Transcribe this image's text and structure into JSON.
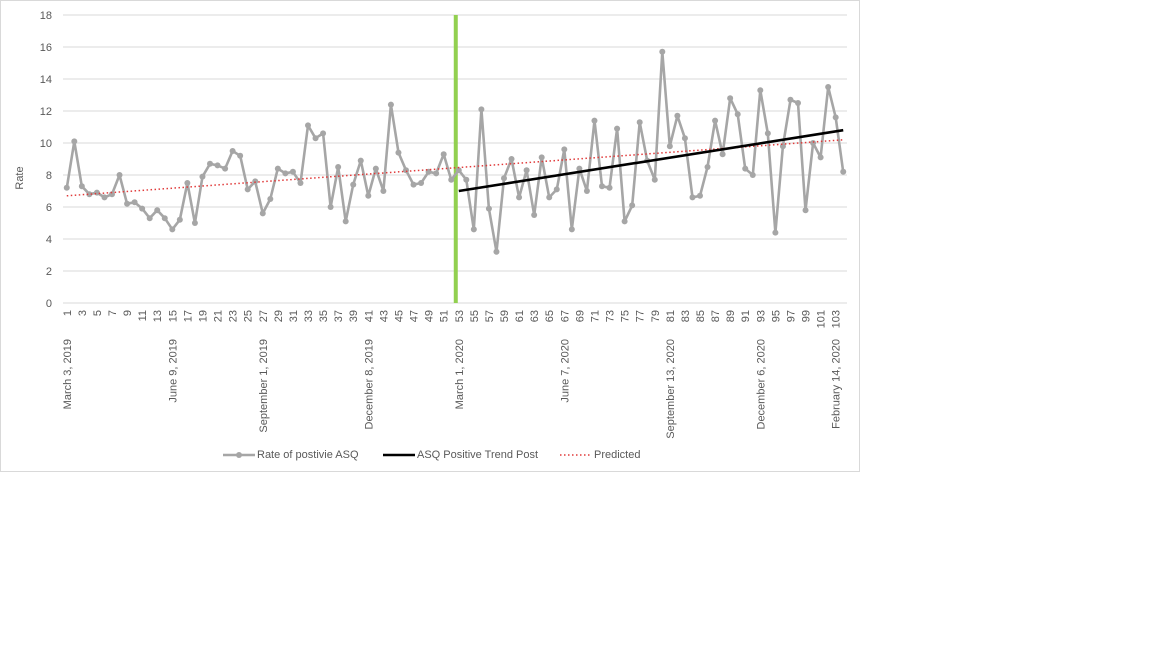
{
  "chart_data": {
    "type": "line",
    "ylabel": "Rate",
    "xlabel": "",
    "ylim": [
      0,
      18
    ],
    "yticks": [
      0,
      2,
      4,
      6,
      8,
      10,
      12,
      14,
      16,
      18
    ],
    "x_tick_labels": [
      "1",
      "3",
      "5",
      "7",
      "9",
      "11",
      "13",
      "15",
      "17",
      "19",
      "21",
      "23",
      "25",
      "27",
      "29",
      "31",
      "33",
      "35",
      "37",
      "39",
      "41",
      "43",
      "45",
      "47",
      "49",
      "51",
      "53",
      "55",
      "57",
      "59",
      "61",
      "63",
      "65",
      "67",
      "69",
      "71",
      "73",
      "75",
      "77",
      "79",
      "81",
      "83",
      "85",
      "87",
      "89",
      "91",
      "93",
      "95",
      "97",
      "99",
      "101",
      "103"
    ],
    "date_labels": [
      {
        "x": 1,
        "label": "March 3, 2019"
      },
      {
        "x": 15,
        "label": "June 9, 2019"
      },
      {
        "x": 27,
        "label": "September 1, 2019"
      },
      {
        "x": 41,
        "label": "December 8, 2019"
      },
      {
        "x": 53,
        "label": "March 1, 2020"
      },
      {
        "x": 67,
        "label": "June 7, 2020"
      },
      {
        "x": 81,
        "label": "September 13, 2020"
      },
      {
        "x": 93,
        "label": "December 6, 2020"
      },
      {
        "x": 103,
        "label": "February 14, 2020"
      }
    ],
    "intervention_x": 53,
    "grid": true,
    "legend_position": "bottom",
    "series": [
      {
        "name": "Rate of postivie ASQ",
        "color": "#a6a6a6",
        "style": "line-marker",
        "x_start": 1,
        "values": [
          7.2,
          10.1,
          7.3,
          6.8,
          6.9,
          6.6,
          6.8,
          8.0,
          6.2,
          6.3,
          5.9,
          5.3,
          5.8,
          5.3,
          4.6,
          5.2,
          7.5,
          5.0,
          7.9,
          8.7,
          8.6,
          8.4,
          9.5,
          9.2,
          7.1,
          7.6,
          5.6,
          6.5,
          8.4,
          8.1,
          8.2,
          7.5,
          11.1,
          10.3,
          10.6,
          6.0,
          8.5,
          5.1,
          7.4,
          8.9,
          6.7,
          8.4,
          7.0,
          12.4,
          9.4,
          8.3,
          7.4,
          7.5,
          8.2,
          8.1,
          9.3,
          7.7,
          8.3,
          7.7,
          4.6,
          12.1,
          5.9,
          3.2,
          7.8,
          9.0,
          6.6,
          8.3,
          5.5,
          9.1,
          6.6,
          7.1,
          9.6,
          4.6,
          8.4,
          7.0,
          11.4,
          7.3,
          7.2,
          10.9,
          5.1,
          6.1,
          11.3,
          8.9,
          7.7,
          15.7,
          9.8,
          11.7,
          10.3,
          6.6,
          6.7,
          8.5,
          11.4,
          9.3,
          12.8,
          11.8,
          8.4,
          8.0,
          13.3,
          10.6,
          4.4,
          9.8,
          12.7,
          12.5,
          5.8,
          10.0,
          9.1,
          13.5,
          11.6,
          8.2
        ]
      },
      {
        "name": "ASQ Positive Trend Post",
        "color": "#000000",
        "style": "line",
        "x": [
          53,
          104
        ],
        "values": [
          7.0,
          10.8
        ]
      },
      {
        "name": "Predicted",
        "color": "#e03a3a",
        "style": "dotted",
        "x": [
          1,
          104
        ],
        "values": [
          6.7,
          10.2
        ]
      }
    ],
    "colors": {
      "gridline": "#d9d9d9",
      "axis": "#d9d9d9",
      "intervention_line": "#92d050",
      "text": "#595959"
    }
  }
}
